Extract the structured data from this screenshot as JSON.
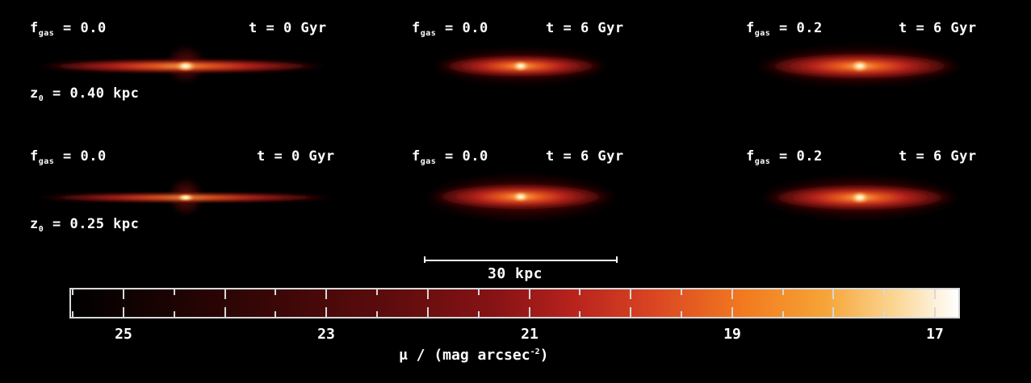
{
  "panels": [
    {
      "fgas_symbol": "f",
      "fgas_sub": "gas",
      "fgas_value": " = 0.0",
      "time": "t = 0 Gyr",
      "z_symbol": "z",
      "z_sub": "0",
      "z_value": " = 0.40 kpc"
    },
    {
      "fgas_symbol": "f",
      "fgas_sub": "gas",
      "fgas_value": " = 0.0",
      "time": "t = 6 Gyr"
    },
    {
      "fgas_symbol": "f",
      "fgas_sub": "gas",
      "fgas_value": " = 0.2",
      "time": "t = 6 Gyr"
    },
    {
      "fgas_symbol": "f",
      "fgas_sub": "gas",
      "fgas_value": " = 0.0",
      "time": "t = 0 Gyr",
      "z_symbol": "z",
      "z_sub": "0",
      "z_value": " = 0.25 kpc"
    },
    {
      "fgas_symbol": "f",
      "fgas_sub": "gas",
      "fgas_value": " = 0.0",
      "time": "t = 6 Gyr"
    },
    {
      "fgas_symbol": "f",
      "fgas_sub": "gas",
      "fgas_value": " = 0.2",
      "time": "t = 6 Gyr"
    }
  ],
  "scalebar": {
    "label": "30 kpc"
  },
  "colorbar": {
    "tick_labels": [
      "25",
      "23",
      "21",
      "19",
      "17"
    ],
    "title_main": "μ / (mag arcsec",
    "title_sup": "-2",
    "title_end": ")",
    "colors": [
      "#000000",
      "#5e0c0d",
      "#b5211c",
      "#f27b1f",
      "#fbd796",
      "#ffffff"
    ]
  }
}
